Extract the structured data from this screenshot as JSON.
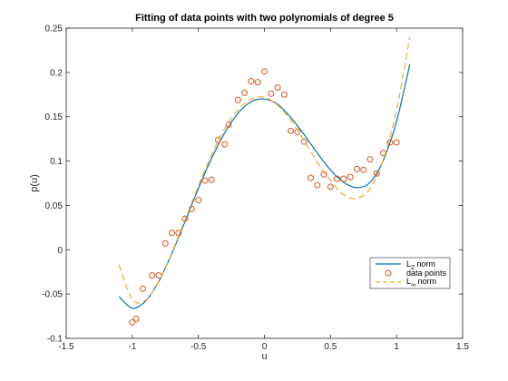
{
  "chart_data": {
    "type": "line",
    "title": "Fitting of data points with two polynomials of degree 5",
    "xlabel": "u",
    "ylabel": "p(u)",
    "xlim": [
      -1.5,
      1.5
    ],
    "ylim": [
      -0.1,
      0.25
    ],
    "xticks": [
      "-1.5",
      "-1",
      "-0.5",
      "0",
      "0.5",
      "1",
      "1.5"
    ],
    "yticks": [
      "-0.1",
      "-0.05",
      "0",
      "0.05",
      "0.1",
      "0.15",
      "0.2",
      "0.25"
    ],
    "grid": false,
    "legend_position": "bottom-right",
    "legend": {
      "entries": [
        {
          "main": "L",
          "sub": "2",
          "rest": " norm"
        },
        {
          "main": "data points",
          "sub": "",
          "rest": ""
        },
        {
          "main": "L",
          "sub": "∞",
          "rest": " norm"
        }
      ]
    },
    "series": [
      {
        "style": "line-solid",
        "color": "#0072BD",
        "x": [
          -1.1,
          -1.0,
          -0.9,
          -0.8,
          -0.7,
          -0.6,
          -0.5,
          -0.4,
          -0.3,
          -0.2,
          -0.1,
          0.0,
          0.1,
          0.2,
          0.3,
          0.4,
          0.5,
          0.6,
          0.7,
          0.8,
          0.9,
          1.0,
          1.1
        ],
        "y": [
          -0.053,
          -0.066,
          -0.058,
          -0.036,
          -0.004,
          0.032,
          0.069,
          0.103,
          0.132,
          0.154,
          0.167,
          0.17,
          0.164,
          0.149,
          0.13,
          0.109,
          0.09,
          0.076,
          0.07,
          0.076,
          0.101,
          0.145,
          0.209
        ]
      },
      {
        "style": "markers",
        "color": "#D95319",
        "x": [
          -1.0,
          -0.97,
          -0.92,
          -0.85,
          -0.8,
          -0.75,
          -0.7,
          -0.65,
          -0.6,
          -0.55,
          -0.5,
          -0.45,
          -0.4,
          -0.35,
          -0.3,
          -0.27,
          -0.2,
          -0.15,
          -0.1,
          -0.05,
          0.0,
          0.05,
          0.1,
          0.15,
          0.2,
          0.25,
          0.3,
          0.35,
          0.4,
          0.45,
          0.5,
          0.55,
          0.6,
          0.65,
          0.7,
          0.75,
          0.8,
          0.85,
          0.9,
          0.95,
          1.0
        ],
        "y": [
          -0.082,
          -0.078,
          -0.044,
          -0.029,
          -0.029,
          0.007,
          0.019,
          0.019,
          0.035,
          0.046,
          0.056,
          0.078,
          0.079,
          0.124,
          0.119,
          0.141,
          0.169,
          0.177,
          0.19,
          0.189,
          0.201,
          0.176,
          0.183,
          0.175,
          0.134,
          0.133,
          0.122,
          0.081,
          0.073,
          0.085,
          0.071,
          0.08,
          0.08,
          0.082,
          0.091,
          0.09,
          0.102,
          0.086,
          0.109,
          0.121,
          0.121
        ]
      },
      {
        "style": "line-dashed",
        "color": "#EDB120",
        "x": [
          -1.1,
          -1.0,
          -0.9,
          -0.8,
          -0.7,
          -0.6,
          -0.5,
          -0.4,
          -0.3,
          -0.2,
          -0.1,
          0.0,
          0.1,
          0.2,
          0.3,
          0.4,
          0.5,
          0.6,
          0.7,
          0.8,
          0.9,
          1.0,
          1.1
        ],
        "y": [
          -0.017,
          -0.056,
          -0.057,
          -0.036,
          -0.003,
          0.034,
          0.072,
          0.107,
          0.137,
          0.158,
          0.17,
          0.172,
          0.163,
          0.146,
          0.123,
          0.099,
          0.078,
          0.062,
          0.058,
          0.069,
          0.102,
          0.158,
          0.24
        ]
      }
    ]
  }
}
